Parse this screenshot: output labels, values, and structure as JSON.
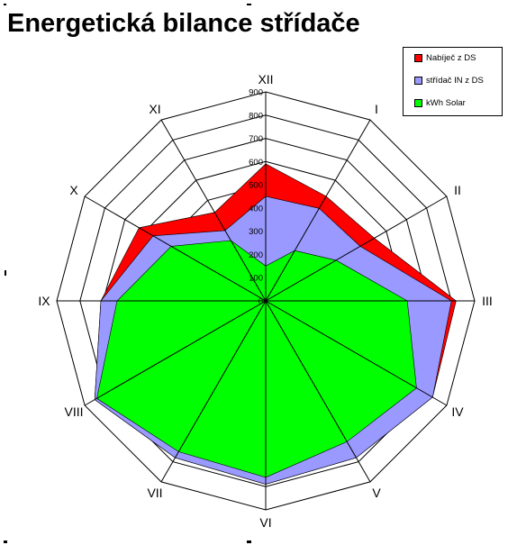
{
  "chart_data": {
    "type": "radar",
    "title": "Energetická bilance střídače",
    "categories": [
      "I",
      "II",
      "III",
      "IV",
      "V",
      "VI",
      "VII",
      "VIII",
      "IX",
      "X",
      "XI",
      "XII"
    ],
    "axis": {
      "rlim": [
        0,
        900
      ],
      "ticks": [
        0,
        100,
        200,
        300,
        400,
        500,
        600,
        700,
        800,
        900
      ],
      "tick_labels": [
        "0",
        "100",
        "200",
        "300",
        "400",
        "500",
        "600",
        "700",
        "800",
        "900"
      ]
    },
    "series": [
      {
        "name": "Nabíječ z DS",
        "color": "#ff0000",
        "values": [
          520,
          540,
          820,
          830,
          780,
          790,
          780,
          850,
          710,
          630,
          440,
          590
        ]
      },
      {
        "name": "střídač IN z DS",
        "color": "#9999ff",
        "values": [
          460,
          470,
          800,
          830,
          780,
          790,
          780,
          850,
          710,
          560,
          350,
          450
        ]
      },
      {
        "name": "kWh Solar",
        "color": "#00ff00",
        "values": [
          250,
          350,
          610,
          750,
          700,
          760,
          750,
          840,
          640,
          470,
          300,
          150
        ]
      }
    ],
    "legend": {
      "position": "top-right"
    },
    "grid": true
  }
}
